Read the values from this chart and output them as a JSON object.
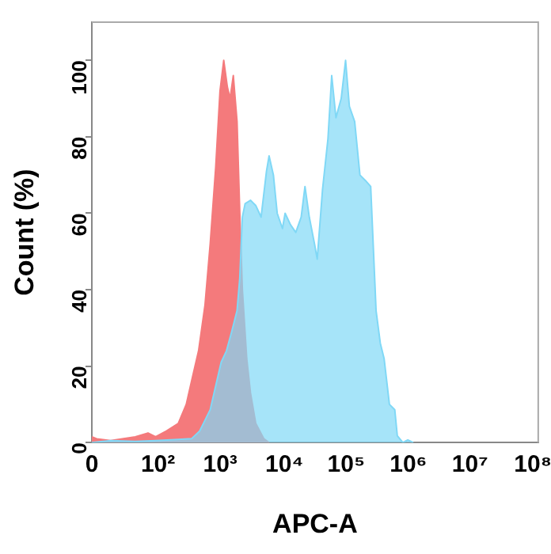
{
  "chart_data": {
    "type": "area",
    "xlabel": "APC-A",
    "ylabel": "Count (%)",
    "xlim": [
      0,
      150000000
    ],
    "ylim": [
      0,
      110
    ],
    "xticks": [
      0,
      {
        "value": 100,
        "label": "10²"
      },
      {
        "value": 1000,
        "label": "10³"
      },
      {
        "value": 10000,
        "label": "10⁴"
      },
      {
        "value": 100000,
        "label": "10⁵"
      },
      {
        "value": 1000000,
        "label": "10⁶"
      },
      {
        "value": 10000000,
        "label": "10⁷"
      },
      {
        "value": 100000000,
        "label": "10⁸"
      }
    ],
    "yticks": [
      0,
      20,
      40,
      60,
      80,
      100
    ],
    "grid": false,
    "log": "x",
    "legend": false,
    "marker": "none",
    "series": [
      {
        "color": "#f47a7c",
        "x": [
          10,
          12,
          20,
          50,
          80,
          106,
          158,
          245,
          330,
          400,
          520,
          660,
          800,
          980,
          1150,
          1320,
          1510,
          1670,
          1880,
          2160,
          2390,
          2630,
          3090,
          3550,
          4320,
          5820,
          7070
        ],
        "values": [
          1.5,
          1,
          0.5,
          1.5,
          2.5,
          1.5,
          3,
          5,
          10,
          16,
          24,
          36,
          52,
          72,
          92,
          100,
          93,
          90,
          96,
          84,
          60,
          40,
          22,
          13,
          5,
          1,
          0
        ]
      },
      {
        "color": "#80d8f6",
        "x": [
          10,
          20,
          50,
          106,
          245,
          400,
          540,
          800,
          1200,
          1460,
          1770,
          2160,
          2390,
          2630,
          2910,
          3550,
          4330,
          5260,
          6420,
          7070,
          8300,
          9550,
          11600,
          12800,
          15600,
          19000,
          23200,
          26700,
          31300,
          38000,
          42000,
          51000,
          62500,
          71800,
          84000,
          102000,
          120000,
          138000,
          168000,
          204000,
          249000,
          304000,
          371000,
          434000,
          499000,
          608000,
          741000,
          814000,
          1000000,
          1200000,
          1470000
        ],
        "values": [
          0,
          0.5,
          0.3,
          0.5,
          0.8,
          1,
          3,
          8.6,
          21,
          24,
          29,
          34.5,
          43,
          59,
          62.5,
          63.4,
          62,
          59,
          71,
          75,
          70,
          60,
          56,
          60,
          57,
          55,
          59,
          67,
          59,
          52,
          48,
          66,
          79.5,
          96,
          85,
          90,
          100,
          88,
          84,
          70,
          68.6,
          67,
          34.5,
          26,
          22,
          10,
          8.6,
          1.8,
          0,
          0.7,
          0
        ]
      }
    ]
  }
}
